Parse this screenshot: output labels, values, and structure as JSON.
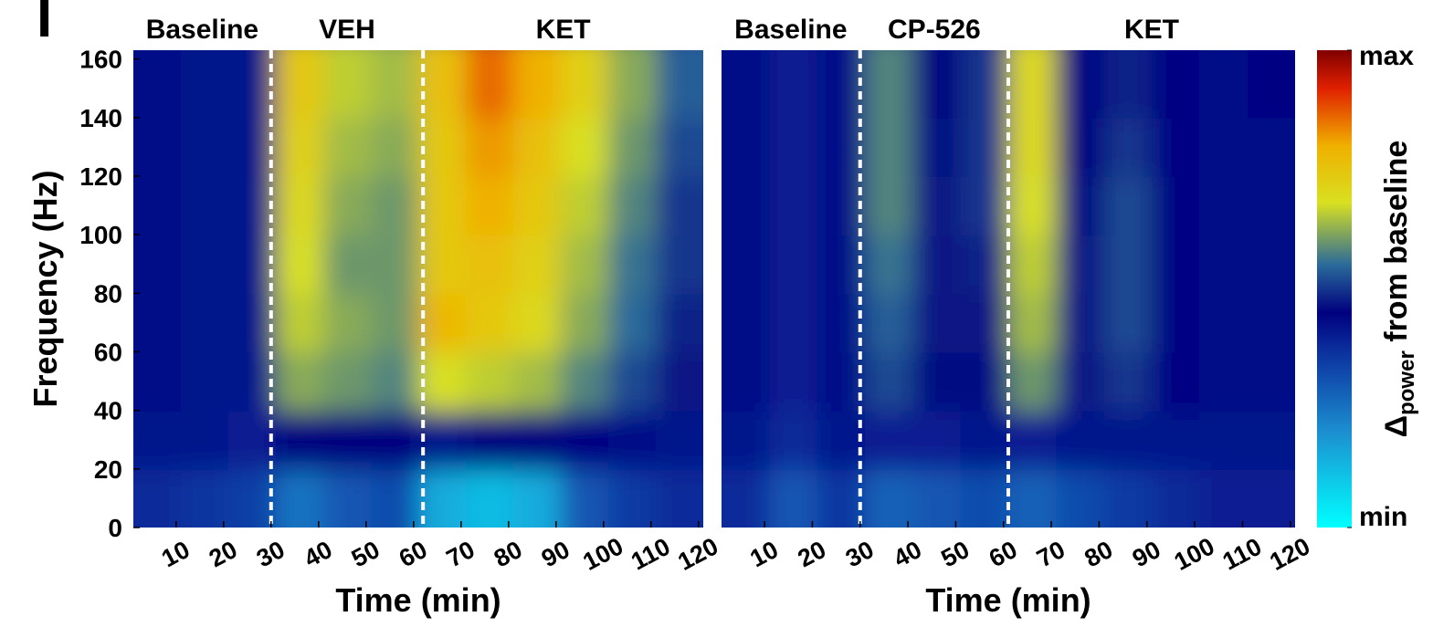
{
  "panel_label": "I",
  "chart_data": [
    {
      "type": "heatmap",
      "phases": [
        "Baseline",
        "VEH",
        "KET"
      ],
      "dividers": [
        30,
        62
      ],
      "xlabel": "Time (min)",
      "ylabel": "Frequency (Hz)",
      "xlim": [
        1,
        121
      ],
      "ylim": [
        0,
        163
      ],
      "xticks": [
        10,
        20,
        30,
        40,
        50,
        60,
        70,
        80,
        90,
        100,
        110,
        120
      ],
      "yticks": [
        0,
        20,
        40,
        60,
        80,
        100,
        120,
        140,
        160
      ],
      "x_bins": [
        1,
        11,
        21,
        31,
        41,
        51,
        61,
        71,
        81,
        91,
        101,
        111,
        121
      ],
      "y_bins": [
        0,
        20,
        40,
        60,
        80,
        100,
        120,
        140,
        160
      ],
      "z": [
        [
          0.38,
          0.36,
          0.34,
          0.25,
          0.3,
          0.32,
          0.15,
          0.12,
          0.15,
          0.3,
          0.35,
          0.38
        ],
        [
          0.42,
          0.42,
          0.4,
          0.45,
          0.45,
          0.45,
          0.42,
          0.45,
          0.45,
          0.44,
          0.43,
          0.42
        ],
        [
          0.43,
          0.42,
          0.42,
          0.62,
          0.6,
          0.58,
          0.68,
          0.66,
          0.64,
          0.58,
          0.52,
          0.47
        ],
        [
          0.43,
          0.42,
          0.42,
          0.66,
          0.62,
          0.6,
          0.78,
          0.74,
          0.7,
          0.62,
          0.55,
          0.48
        ],
        [
          0.43,
          0.42,
          0.42,
          0.68,
          0.6,
          0.6,
          0.74,
          0.76,
          0.72,
          0.64,
          0.56,
          0.5
        ],
        [
          0.43,
          0.42,
          0.42,
          0.7,
          0.62,
          0.6,
          0.74,
          0.8,
          0.74,
          0.66,
          0.58,
          0.5
        ],
        [
          0.43,
          0.42,
          0.42,
          0.72,
          0.64,
          0.62,
          0.74,
          0.82,
          0.76,
          0.68,
          0.6,
          0.52
        ],
        [
          0.43,
          0.42,
          0.42,
          0.74,
          0.66,
          0.64,
          0.76,
          0.86,
          0.8,
          0.72,
          0.62,
          0.54
        ]
      ]
    },
    {
      "type": "heatmap",
      "phases": [
        "Baseline",
        "CP-526",
        "KET"
      ],
      "dividers": [
        30,
        61
      ],
      "xlabel": "Time (min)",
      "xlim": [
        1,
        121
      ],
      "ylim": [
        0,
        163
      ],
      "xticks": [
        10,
        20,
        30,
        40,
        50,
        60,
        70,
        80,
        90,
        100,
        110,
        120
      ],
      "x_bins": [
        1,
        11,
        21,
        31,
        41,
        51,
        61,
        71,
        81,
        91,
        101,
        111,
        121
      ],
      "y_bins": [
        0,
        20,
        40,
        60,
        80,
        100,
        120,
        140,
        160
      ],
      "z": [
        [
          0.38,
          0.3,
          0.36,
          0.28,
          0.3,
          0.32,
          0.28,
          0.32,
          0.35,
          0.38,
          0.4,
          0.4
        ],
        [
          0.42,
          0.38,
          0.42,
          0.4,
          0.4,
          0.42,
          0.4,
          0.42,
          0.42,
          0.42,
          0.42,
          0.42
        ],
        [
          0.43,
          0.4,
          0.43,
          0.52,
          0.46,
          0.46,
          0.6,
          0.47,
          0.5,
          0.44,
          0.43,
          0.43
        ],
        [
          0.43,
          0.4,
          0.43,
          0.54,
          0.47,
          0.47,
          0.64,
          0.47,
          0.52,
          0.44,
          0.43,
          0.43
        ],
        [
          0.43,
          0.4,
          0.43,
          0.56,
          0.47,
          0.48,
          0.66,
          0.47,
          0.52,
          0.44,
          0.43,
          0.43
        ],
        [
          0.43,
          0.4,
          0.43,
          0.58,
          0.47,
          0.5,
          0.68,
          0.46,
          0.52,
          0.44,
          0.43,
          0.43
        ],
        [
          0.43,
          0.4,
          0.43,
          0.58,
          0.46,
          0.5,
          0.7,
          0.45,
          0.5,
          0.44,
          0.43,
          0.43
        ],
        [
          0.43,
          0.4,
          0.43,
          0.58,
          0.45,
          0.5,
          0.7,
          0.44,
          0.48,
          0.44,
          0.43,
          0.44
        ]
      ]
    }
  ],
  "colorbar": {
    "zlim": [
      0,
      1
    ],
    "zticks": [
      {
        "value": 0,
        "label": "min"
      },
      {
        "value": 1,
        "label": "max"
      }
    ],
    "label": {
      "symbol": "Δ",
      "subscript": "power",
      "text": " from baseline"
    },
    "stops": [
      0,
      0.2,
      0.38,
      0.45,
      0.55,
      0.68,
      0.8,
      0.92,
      1
    ],
    "colors": [
      "#00ffff",
      "#1c8fd0",
      "#0a2a9a",
      "#00007f",
      "#2a6a9a",
      "#d8e020",
      "#f0b000",
      "#e02000",
      "#800000"
    ]
  }
}
